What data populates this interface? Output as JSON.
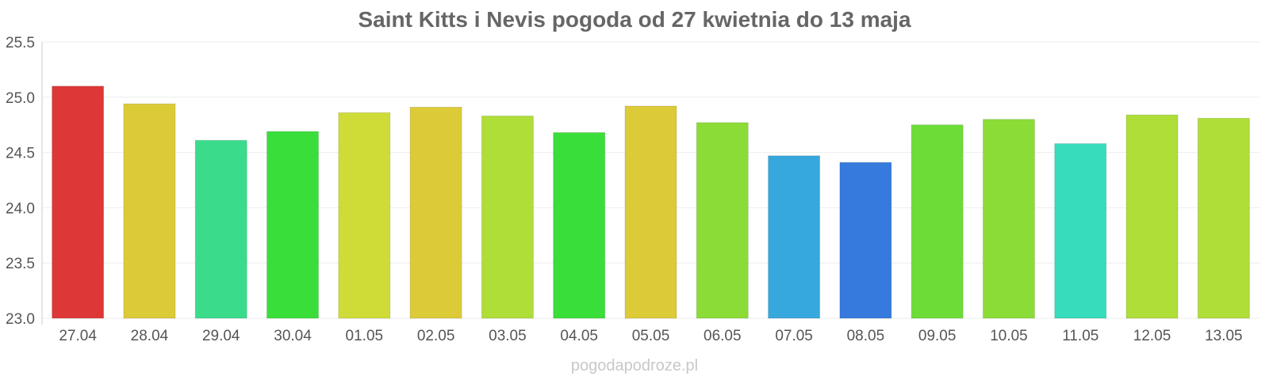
{
  "chart_data": {
    "type": "bar",
    "title": "Saint Kitts i Nevis pogoda od 27 kwietnia do 13 maja",
    "xlabel": "",
    "ylabel": "",
    "ylim": [
      23.0,
      25.5
    ],
    "yticks": [
      "23.0",
      "23.5",
      "24.0",
      "24.5",
      "25.0",
      "25.5"
    ],
    "grid": true,
    "categories": [
      "27.04",
      "28.04",
      "29.04",
      "30.04",
      "01.05",
      "02.05",
      "03.05",
      "04.05",
      "05.05",
      "06.05",
      "07.05",
      "08.05",
      "09.05",
      "10.05",
      "11.05",
      "12.05",
      "13.05"
    ],
    "values": [
      25.1,
      24.94,
      24.61,
      24.69,
      24.86,
      24.91,
      24.83,
      24.68,
      24.92,
      24.77,
      24.47,
      24.41,
      24.75,
      24.8,
      24.58,
      24.84,
      24.81
    ],
    "colors": [
      "#dd3333",
      "#dbca33",
      "#36db8a",
      "#36dd36",
      "#cedb33",
      "#dbca33",
      "#acdd33",
      "#36dd36",
      "#dbca33",
      "#8adb33",
      "#33a6dd",
      "#3377dd",
      "#6adb33",
      "#8adb33",
      "#33dbbb",
      "#acdd33",
      "#acdd33"
    ]
  },
  "watermark": "pogodapodroze.pl"
}
